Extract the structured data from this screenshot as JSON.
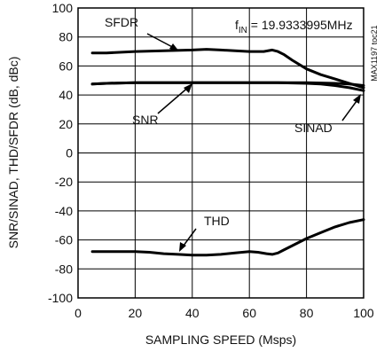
{
  "chart_data": {
    "type": "line",
    "title": "",
    "xlabel": "SAMPLING SPEED (Msps)",
    "ylabel": "SNR/SINAD, THD/SFDR (dB, dBc)",
    "xlim": [
      0,
      100
    ],
    "ylim": [
      -100,
      100
    ],
    "x_ticks": [
      0,
      20,
      40,
      60,
      80,
      100
    ],
    "y_ticks": [
      100,
      80,
      60,
      40,
      20,
      0,
      -20,
      -40,
      -60,
      -80,
      -100
    ],
    "x_tick_labels": [
      "0",
      "20",
      "40",
      "60",
      "80",
      "100"
    ],
    "y_tick_labels": [
      "100",
      "80",
      "60",
      "40",
      "20",
      "0",
      "-20",
      "-40",
      "-60",
      "-80",
      "-100"
    ],
    "grid": true,
    "condition": {
      "prefix": "f",
      "subscript": "IN",
      "suffix": " = 19.9333995MHz"
    },
    "figure_id": "MAX1197 toc21",
    "series": [
      {
        "name": "SFDR",
        "x": [
          5,
          10,
          20,
          30,
          40,
          45,
          50,
          55,
          60,
          65,
          68,
          70,
          72,
          75,
          80,
          85,
          90,
          95,
          100
        ],
        "y": [
          69,
          69,
          70,
          70.5,
          71,
          71.5,
          71,
          70.5,
          70,
          70,
          71,
          70,
          68,
          64,
          58,
          54,
          51,
          48,
          45
        ]
      },
      {
        "name": "SNR",
        "x": [
          5,
          10,
          20,
          30,
          40,
          50,
          60,
          70,
          80,
          90,
          95,
          100
        ],
        "y": [
          47.5,
          48,
          48.5,
          48.5,
          48.5,
          48.5,
          48.5,
          48.5,
          48.5,
          48,
          47.5,
          46.5
        ]
      },
      {
        "name": "SINAD",
        "x": [
          5,
          10,
          20,
          30,
          40,
          50,
          60,
          70,
          80,
          85,
          90,
          95,
          100
        ],
        "y": [
          47.5,
          48,
          48.5,
          48.5,
          48.5,
          48.5,
          48.5,
          48.5,
          48,
          47.5,
          46.5,
          45,
          43
        ]
      },
      {
        "name": "THD",
        "x": [
          5,
          10,
          20,
          25,
          30,
          35,
          40,
          45,
          50,
          55,
          60,
          63,
          66,
          68,
          70,
          72,
          75,
          80,
          85,
          90,
          95,
          100
        ],
        "y": [
          -68,
          -68,
          -68,
          -68.5,
          -69.5,
          -70,
          -70.5,
          -70.5,
          -70,
          -69,
          -68,
          -68.5,
          -69.5,
          -70,
          -69,
          -67,
          -64,
          -59,
          -55,
          -51,
          -48,
          -46
        ]
      }
    ],
    "annotations": [
      {
        "text": "SFDR",
        "series": "SFDR"
      },
      {
        "text": "SNR",
        "series": "SNR"
      },
      {
        "text": "SINAD",
        "series": "SINAD"
      },
      {
        "text": "THD",
        "series": "THD"
      }
    ]
  }
}
